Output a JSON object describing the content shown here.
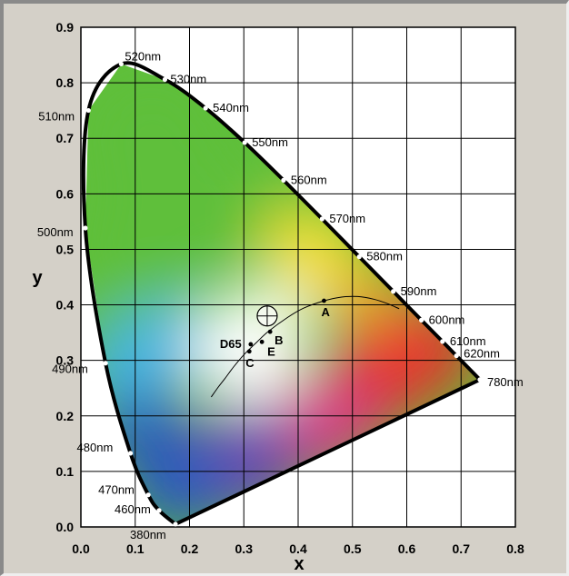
{
  "chart_data": {
    "type": "scatter",
    "title": "",
    "xlabel": "x",
    "ylabel": "y",
    "xlim": [
      0.0,
      0.8
    ],
    "ylim": [
      0.0,
      0.9
    ],
    "grid": true,
    "x_ticks": [
      "0.0",
      "0.1",
      "0.2",
      "0.3",
      "0.4",
      "0.5",
      "0.6",
      "0.7",
      "0.8"
    ],
    "y_ticks": [
      "0.0",
      "0.1",
      "0.2",
      "0.3",
      "0.4",
      "0.5",
      "0.6",
      "0.7",
      "0.8",
      "0.9"
    ],
    "spectral_locus": [
      {
        "label": "380nm",
        "x": 0.1741,
        "y": 0.005
      },
      {
        "label": "460nm",
        "x": 0.144,
        "y": 0.0297
      },
      {
        "label": "470nm",
        "x": 0.1241,
        "y": 0.0578
      },
      {
        "label": "480nm",
        "x": 0.0913,
        "y": 0.1327
      },
      {
        "label": "490nm",
        "x": 0.0454,
        "y": 0.295
      },
      {
        "label": "500nm",
        "x": 0.0082,
        "y": 0.5384
      },
      {
        "label": "510nm",
        "x": 0.0139,
        "y": 0.7502
      },
      {
        "label": "520nm",
        "x": 0.0743,
        "y": 0.8338
      },
      {
        "label": "530nm",
        "x": 0.1547,
        "y": 0.8059
      },
      {
        "label": "540nm",
        "x": 0.2296,
        "y": 0.7543
      },
      {
        "label": "550nm",
        "x": 0.3016,
        "y": 0.6923
      },
      {
        "label": "560nm",
        "x": 0.3731,
        "y": 0.6245
      },
      {
        "label": "570nm",
        "x": 0.4441,
        "y": 0.5547
      },
      {
        "label": "580nm",
        "x": 0.5125,
        "y": 0.4866
      },
      {
        "label": "590nm",
        "x": 0.5752,
        "y": 0.4242
      },
      {
        "label": "600nm",
        "x": 0.627,
        "y": 0.3725
      },
      {
        "label": "610nm",
        "x": 0.6658,
        "y": 0.334
      },
      {
        "label": "620nm",
        "x": 0.6915,
        "y": 0.3083
      },
      {
        "label": "780nm",
        "x": 0.7347,
        "y": 0.2653
      }
    ],
    "white_points": [
      {
        "label": "A",
        "x": 0.4476,
        "y": 0.4074
      },
      {
        "label": "B",
        "x": 0.3484,
        "y": 0.3516
      },
      {
        "label": "C",
        "x": 0.3101,
        "y": 0.3162
      },
      {
        "label": "D65",
        "x": 0.3127,
        "y": 0.329
      },
      {
        "label": "E",
        "x": 0.3333,
        "y": 0.3333
      }
    ],
    "planckian_locus": [
      {
        "x": 0.24,
        "y": 0.234
      },
      {
        "x": 0.253,
        "y": 0.252
      },
      {
        "x": 0.265,
        "y": 0.267
      },
      {
        "x": 0.281,
        "y": 0.288
      },
      {
        "x": 0.3,
        "y": 0.31
      },
      {
        "x": 0.323,
        "y": 0.332
      },
      {
        "x": 0.345,
        "y": 0.352
      },
      {
        "x": 0.38,
        "y": 0.377
      },
      {
        "x": 0.41,
        "y": 0.394
      },
      {
        "x": 0.447,
        "y": 0.407
      },
      {
        "x": 0.48,
        "y": 0.414
      },
      {
        "x": 0.51,
        "y": 0.415
      },
      {
        "x": 0.54,
        "y": 0.41
      },
      {
        "x": 0.565,
        "y": 0.402
      },
      {
        "x": 0.586,
        "y": 0.393
      }
    ],
    "target_marker": {
      "x": 0.343,
      "y": 0.38
    },
    "colors": {
      "background": "#d4d0c8",
      "locus_line": "#000000",
      "grid": "#000000",
      "green": "#5fbf3a",
      "yellow": "#f7e035",
      "orange": "#f4a030",
      "red": "#e8332f",
      "magenta": "#d83a86",
      "purple": "#6a4ab0",
      "blue": "#2a58c0",
      "cyan": "#46b6e6",
      "white": "#ffffff"
    }
  }
}
